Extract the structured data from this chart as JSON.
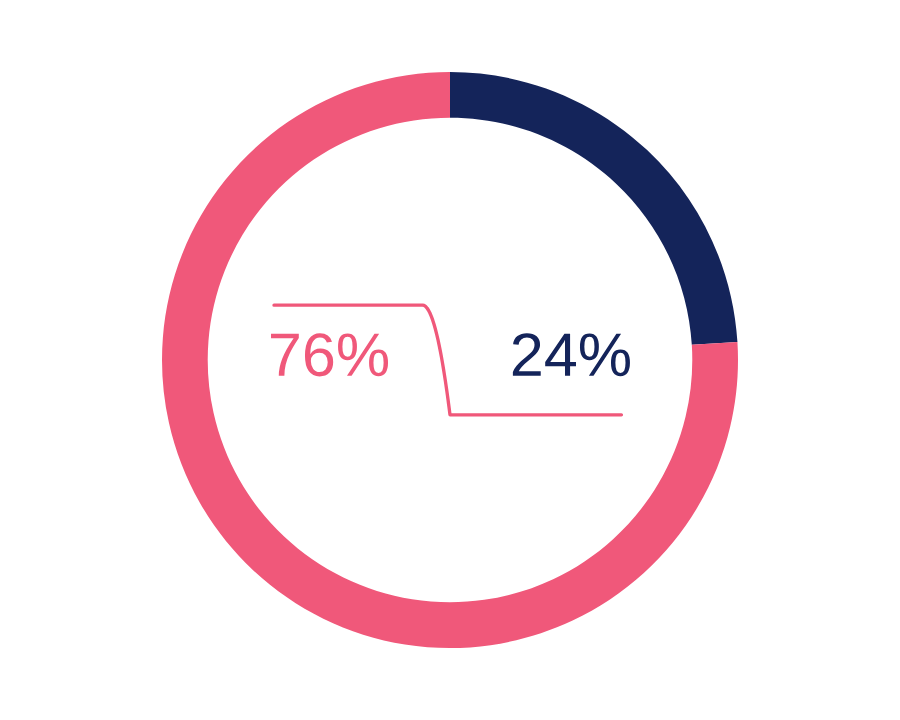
{
  "chart_data": {
    "type": "donut",
    "categories": [
      null,
      null
    ],
    "values": [
      24,
      76
    ],
    "colors": [
      "#14245a",
      "#f0587a"
    ],
    "value_labels": [
      "24%",
      "76%"
    ],
    "legend": false
  }
}
